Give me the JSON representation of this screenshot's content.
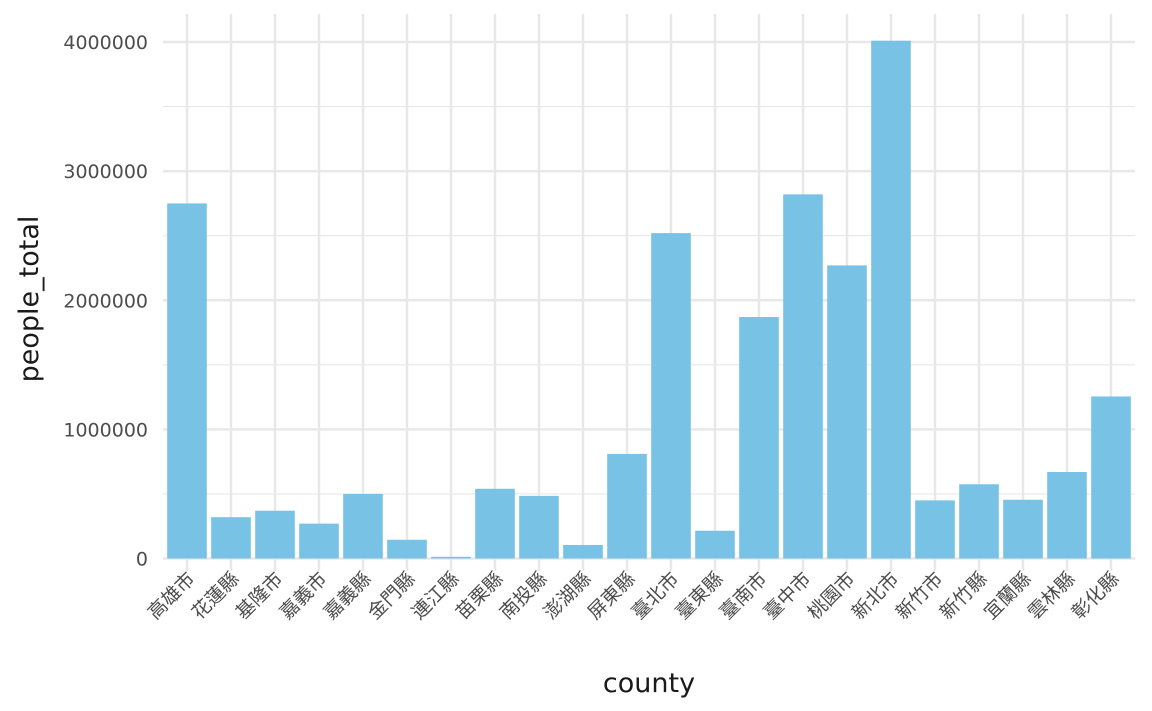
{
  "chart_data": {
    "type": "bar",
    "title": "",
    "xlabel": "county",
    "ylabel": "people_total",
    "ylim": [
      0,
      4000000
    ],
    "yticks": [
      "0",
      "1000000",
      "2000000",
      "3000000",
      "4000000"
    ],
    "grid": true,
    "legend": "none",
    "bar_color": "#77C2E5",
    "grid_color": "#e8e8e8",
    "categories": [
      "高雄市",
      "花蓮縣",
      "基隆市",
      "嘉義市",
      "嘉義縣",
      "金門縣",
      "連江縣",
      "苗栗縣",
      "南投縣",
      "澎湖縣",
      "屏東縣",
      "臺北市",
      "臺東縣",
      "臺南市",
      "臺中市",
      "桃園市",
      "新北市",
      "新竹市",
      "新竹縣",
      "宜蘭縣",
      "雲林縣",
      "彰化縣"
    ],
    "values": [
      2750000,
      320000,
      370000,
      270000,
      500000,
      145000,
      13000,
      540000,
      485000,
      105000,
      810000,
      2520000,
      215000,
      1870000,
      2820000,
      2270000,
      4010000,
      450000,
      575000,
      455000,
      670000,
      1255000
    ]
  }
}
